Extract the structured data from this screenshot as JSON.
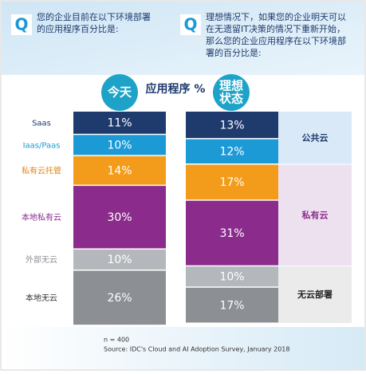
{
  "chart_data": {
    "type": "stacked-column",
    "q_label": "Q",
    "questions": [
      [
        "您的企业目前在以下环境部署",
        "的应用程序百分比是:"
      ],
      [
        "理想情况下，如果您的企业明天可以",
        "在无遗留IT决策的情况下重新开始，",
        "那么您的企业应用程序在以下环境部",
        "署的百分比是:"
      ]
    ],
    "center_label": "应用程序 %",
    "categories": [
      "Saas",
      "Iaas/Paas",
      "私有云托管",
      "本地私有云",
      "外部无云",
      "本地无云"
    ],
    "colors": [
      "#1f3b6d",
      "#1c9ad6",
      "#f39c1b",
      "#8b2c8c",
      "#b4b7bb",
      "#8c8f93"
    ],
    "category_label_colors": [
      "#1f3b6d",
      "#1c9ad6",
      "#e0861a",
      "#8b2c8c",
      "#8c8f93",
      "#333333"
    ],
    "series": [
      {
        "name": "今天",
        "values": [
          11,
          10,
          14,
          30,
          10,
          26
        ],
        "value_labels": [
          "11%",
          "10%",
          "14%",
          "30%",
          "10%",
          "26%"
        ]
      },
      {
        "name": "理想状态",
        "values": [
          13,
          12,
          17,
          31,
          10,
          17
        ],
        "value_labels": [
          "13%",
          "12%",
          "17%",
          "31%",
          "10%",
          "17%"
        ]
      }
    ],
    "groups": [
      {
        "label": "公共云",
        "color": "#d9e9f7",
        "text_color": "#1f3b6d"
      },
      {
        "label": "私有云",
        "color": "#ede1f0",
        "text_color": "#8b2c8c"
      },
      {
        "label": "无云部署",
        "color": "#ebebeb",
        "text_color": "#222222"
      }
    ],
    "notes": [
      "n = 400",
      "Source: IDC's Cloud and AI Adoption Survey, January 2018"
    ]
  }
}
